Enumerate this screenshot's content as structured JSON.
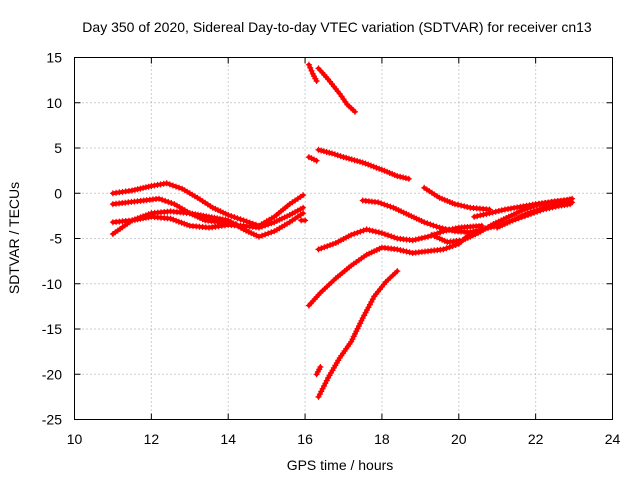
{
  "chart_data": {
    "type": "scatter",
    "title": "Day 350 of 2020, Sidereal Day-to-day VTEC variation (SDTVAR) for receiver cn13",
    "xlabel": "GPS time / hours",
    "ylabel": "SDTVAR / TECUs",
    "xlim": [
      10,
      24
    ],
    "ylim": [
      -25,
      15
    ],
    "xticks": [
      10,
      12,
      14,
      16,
      18,
      20,
      22,
      24
    ],
    "yticks": [
      -25,
      -20,
      -15,
      -10,
      -5,
      0,
      5,
      10,
      15
    ],
    "grid": true,
    "marker": "plus",
    "color": "#ff0000",
    "series": [
      {
        "name": "s1",
        "x": [
          11.0,
          11.5,
          12.0,
          12.4,
          12.8,
          13.2,
          13.6,
          14.0,
          14.4,
          14.8,
          15.2,
          15.6,
          15.95
        ],
        "y": [
          0.0,
          0.3,
          0.8,
          1.1,
          0.5,
          -0.5,
          -1.6,
          -2.4,
          -3.0,
          -3.6,
          -2.6,
          -1.2,
          -0.2
        ]
      },
      {
        "name": "s2",
        "x": [
          11.0,
          11.5,
          12.0,
          12.5,
          13.0,
          13.5,
          14.0,
          14.4,
          14.8,
          15.2,
          15.6,
          15.95
        ],
        "y": [
          -4.5,
          -3.0,
          -2.2,
          -2.0,
          -2.2,
          -2.6,
          -3.0,
          -4.0,
          -4.8,
          -4.2,
          -3.2,
          -2.2
        ]
      },
      {
        "name": "s3",
        "x": [
          11.0,
          11.5,
          12.0,
          12.5,
          13.0,
          13.5,
          14.0,
          14.4,
          14.8,
          15.2,
          15.6,
          15.95
        ],
        "y": [
          -3.2,
          -3.0,
          -2.6,
          -2.8,
          -3.6,
          -3.8,
          -3.5,
          -3.6,
          -3.8,
          -3.2,
          -2.4,
          -1.6
        ]
      },
      {
        "name": "s4",
        "x": [
          11.0,
          11.4,
          11.8,
          12.2,
          12.6,
          13.0,
          13.4,
          13.8,
          14.2
        ],
        "y": [
          -1.2,
          -1.0,
          -0.8,
          -0.6,
          -1.2,
          -2.2,
          -3.0,
          -3.2,
          -3.4
        ]
      },
      {
        "name": "s5",
        "x": [
          15.9,
          16.0
        ],
        "y": [
          -3.0,
          -3.0
        ]
      },
      {
        "name": "s6",
        "x": [
          16.1,
          16.2,
          16.3
        ],
        "y": [
          14.2,
          13.2,
          12.4
        ]
      },
      {
        "name": "s7",
        "x": [
          16.35,
          16.6,
          16.9,
          17.1,
          17.3
        ],
        "y": [
          13.8,
          12.6,
          11.0,
          9.8,
          9.0
        ]
      },
      {
        "name": "s8",
        "x": [
          16.1,
          16.3
        ],
        "y": [
          4.0,
          3.6
        ]
      },
      {
        "name": "s9",
        "x": [
          16.35,
          16.7,
          17.0,
          17.5,
          18.0,
          18.4,
          18.7
        ],
        "y": [
          4.8,
          4.4,
          4.0,
          3.4,
          2.6,
          1.9,
          1.6
        ]
      },
      {
        "name": "s10",
        "x": [
          16.35,
          16.8,
          17.2,
          17.6,
          18.0,
          18.4,
          18.8,
          19.2,
          19.6,
          20.0,
          20.3,
          20.6
        ],
        "y": [
          -6.2,
          -5.5,
          -4.6,
          -4.0,
          -4.4,
          -5.0,
          -5.2,
          -4.8,
          -4.2,
          -3.8,
          -3.7,
          -3.6
        ]
      },
      {
        "name": "s11",
        "x": [
          16.1,
          16.4,
          16.8,
          17.2,
          17.6,
          18.0,
          18.4,
          18.8,
          19.2,
          19.6,
          20.0,
          20.3
        ],
        "y": [
          -12.4,
          -11.0,
          -9.4,
          -8.0,
          -6.8,
          -6.0,
          -6.2,
          -6.6,
          -6.4,
          -6.2,
          -5.6,
          -4.4
        ]
      },
      {
        "name": "s12",
        "x": [
          16.35,
          16.6,
          16.9,
          17.2,
          17.5,
          17.8,
          18.1,
          18.4
        ],
        "y": [
          -22.5,
          -20.4,
          -18.2,
          -16.4,
          -13.8,
          -11.4,
          -9.8,
          -8.6
        ]
      },
      {
        "name": "s13",
        "x": [
          16.3,
          16.4
        ],
        "y": [
          -20.0,
          -19.2
        ]
      },
      {
        "name": "s14",
        "x": [
          17.5,
          17.9,
          18.3,
          18.7,
          19.1,
          19.5,
          19.9,
          20.3,
          20.6,
          21.0,
          21.4,
          21.8,
          22.2,
          22.6,
          22.9
        ],
        "y": [
          -0.8,
          -1.0,
          -1.6,
          -2.4,
          -3.2,
          -3.8,
          -4.2,
          -4.3,
          -4.0,
          -3.6,
          -3.0,
          -2.4,
          -1.8,
          -1.4,
          -1.2
        ]
      },
      {
        "name": "s15",
        "x": [
          19.1,
          19.5,
          19.9,
          20.3,
          20.8
        ],
        "y": [
          0.6,
          -0.5,
          -1.2,
          -1.6,
          -1.8
        ]
      },
      {
        "name": "s16",
        "x": [
          19.3,
          19.7,
          20.1,
          20.5,
          20.9,
          21.3,
          21.7,
          22.1,
          22.5,
          22.9
        ],
        "y": [
          -4.6,
          -5.4,
          -5.2,
          -4.4,
          -3.4,
          -2.6,
          -1.8,
          -1.2,
          -0.9,
          -0.7
        ]
      },
      {
        "name": "s17",
        "x": [
          20.4,
          20.8,
          21.2,
          21.6,
          22.0,
          22.4,
          22.8,
          22.95
        ],
        "y": [
          -2.6,
          -2.2,
          -1.8,
          -1.5,
          -1.2,
          -1.0,
          -0.8,
          -0.6
        ]
      },
      {
        "name": "s18",
        "x": [
          21.0,
          21.4,
          21.8,
          22.2,
          22.6,
          22.95
        ],
        "y": [
          -3.8,
          -3.0,
          -2.2,
          -1.6,
          -1.2,
          -1.0
        ]
      }
    ]
  }
}
